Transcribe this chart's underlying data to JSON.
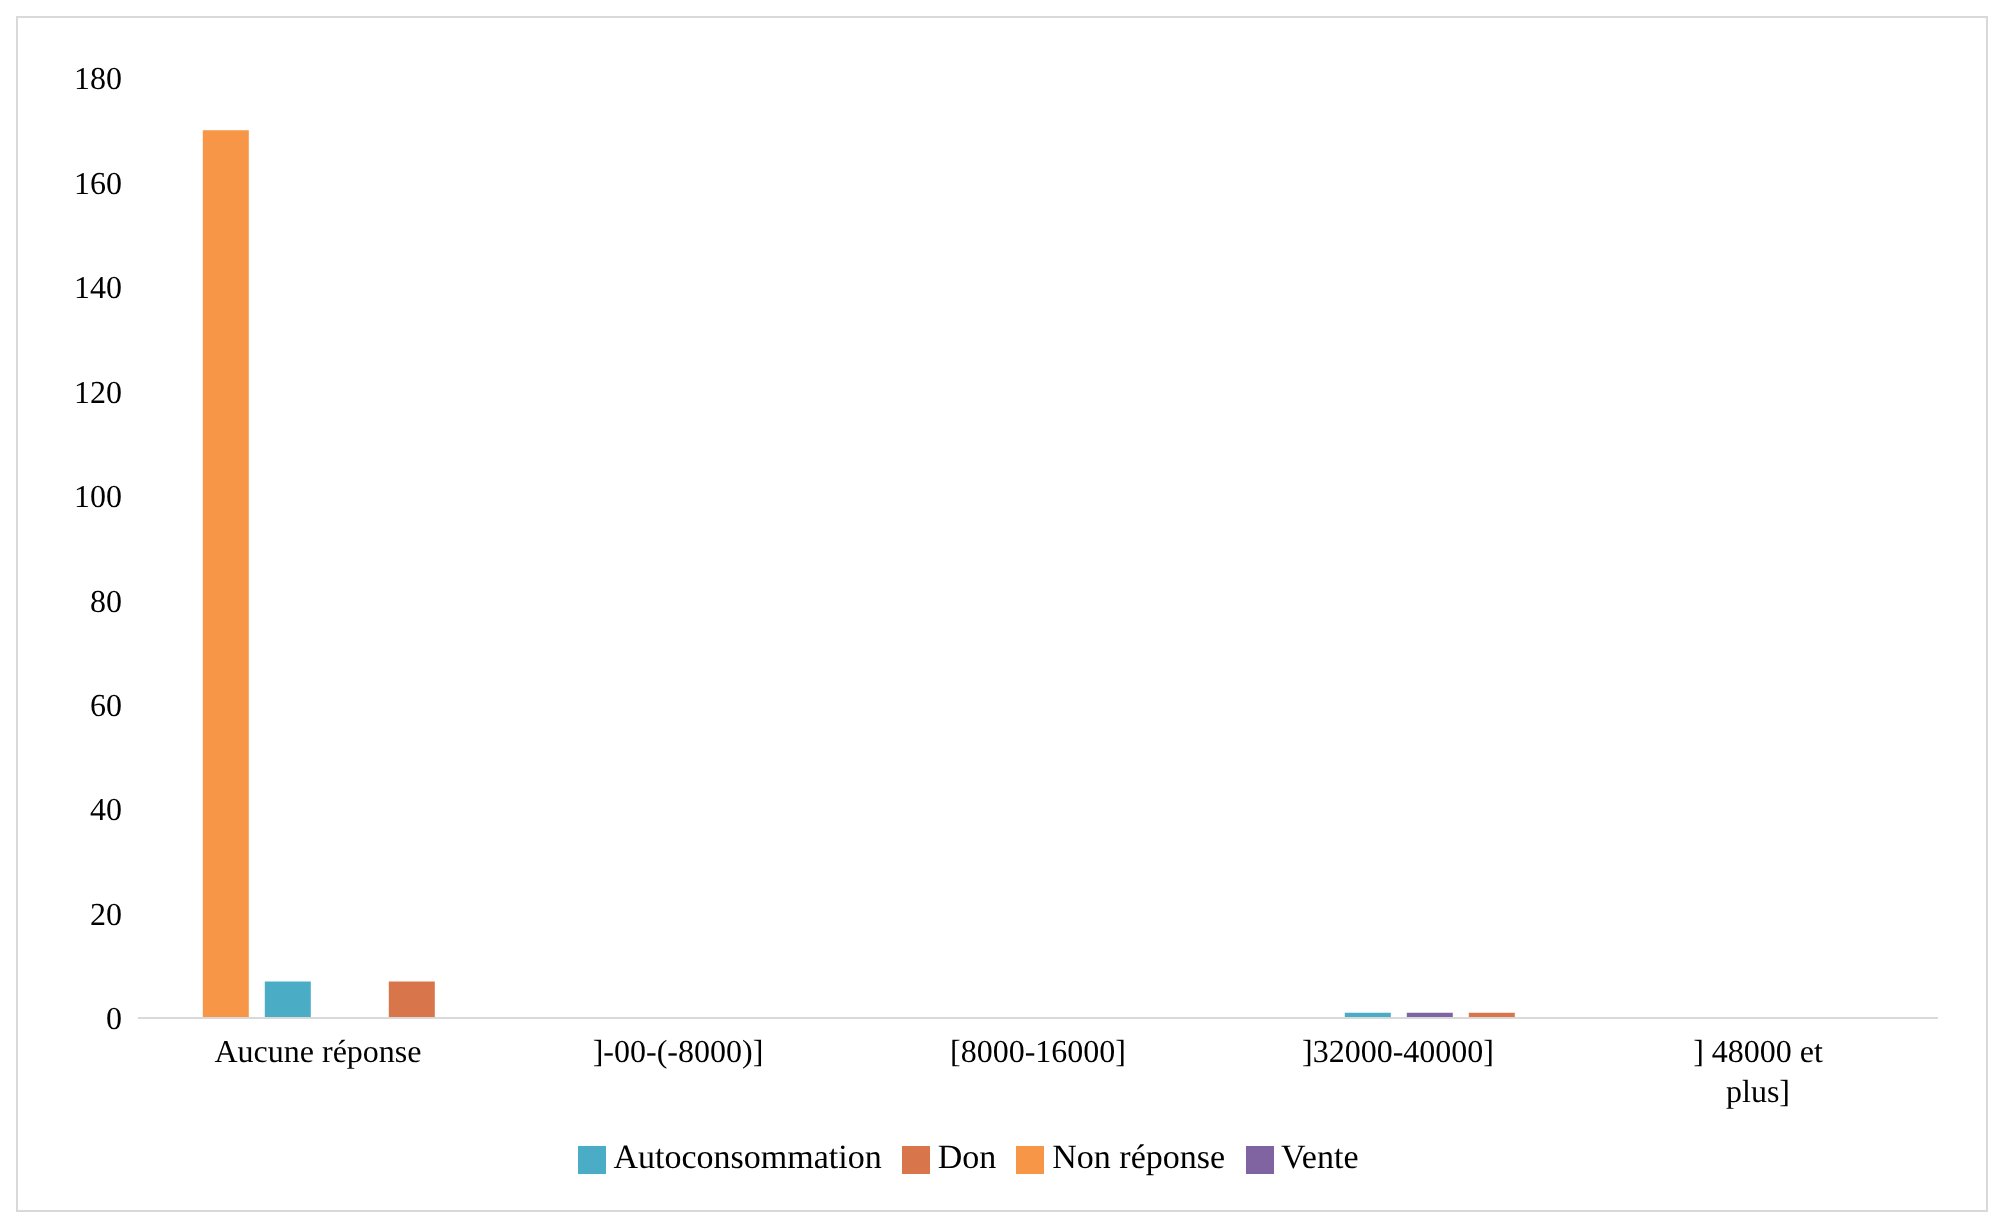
{
  "chart_data": {
    "type": "bar",
    "categories": [
      "Aucune réponse",
      "]-00-(-8000)]",
      "[8000-16000]",
      "]32000-40000]",
      "] 48000 et plus]"
    ],
    "series": [
      {
        "name": "Non réponse",
        "color": "#f79646",
        "values": [
          170,
          0,
          0,
          0,
          0
        ]
      },
      {
        "name": "Autoconsommation",
        "color": "#4bacc6",
        "values": [
          7,
          0,
          0,
          1,
          0
        ]
      },
      {
        "name": "Vente",
        "color": "#8064a2",
        "values": [
          0,
          0,
          0,
          1,
          0
        ]
      },
      {
        "name": "Don",
        "color": "#d9754a",
        "values": [
          7,
          0,
          0,
          1,
          0
        ]
      }
    ],
    "ylim": [
      0,
      180
    ],
    "yticks": [
      0,
      20,
      40,
      60,
      80,
      100,
      120,
      140,
      160,
      180
    ],
    "grid": false,
    "legend": "bottom"
  }
}
